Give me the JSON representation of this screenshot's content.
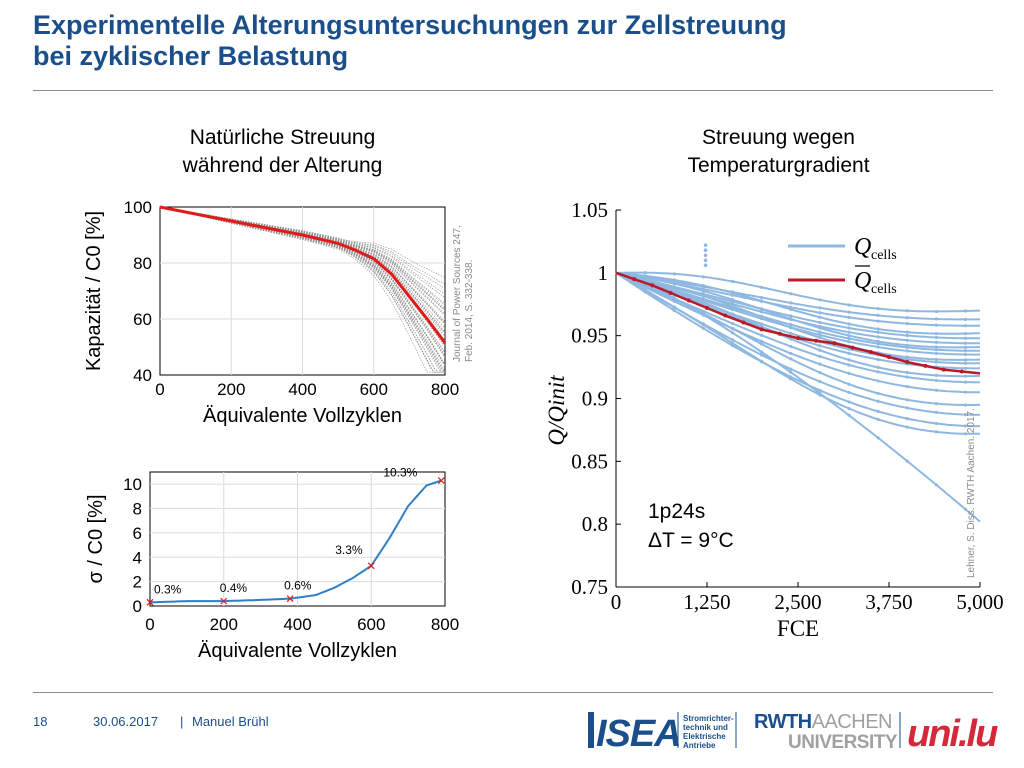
{
  "slide": {
    "title_line1": "Experimentelle Alterungsuntersuchungen zur Zellstreuung",
    "title_line2": "bei zyklischer Belastung",
    "left_heading_1": "Natürliche Streuung",
    "left_heading_2": "während der Alterung",
    "right_heading_1": "Streuung wegen",
    "right_heading_2": "Temperaturgradient",
    "citation_left_1": "Journal of Power Sources 247,",
    "citation_left_2": "Feb. 2014, S. 332-338.",
    "citation_right": "Lehner, S. Diss. RWTH Aachen. 2017."
  },
  "footer": {
    "page_number": "18",
    "date": "30.06.2017",
    "separator": "|",
    "author": "Manuel Brühl",
    "isea_logo_text": "ISEA",
    "isea_tagline_1": "Stromrichter-",
    "isea_tagline_2": "technik und",
    "isea_tagline_3": "Elektrische",
    "isea_tagline_4": "Antriebe",
    "rwth_line1_a": "RWTH",
    "rwth_line1_b": "AACHEN",
    "rwth_line2": "UNIVERSITY",
    "unilu_text": "uni.lu"
  },
  "colors": {
    "title": "#1a4f8b",
    "gray_curves": "#8c8c8c",
    "red": "#e21a1a",
    "dark_red": "#b81a28",
    "light_blue": "#8fb8e0",
    "blue": "#2f7fc4"
  },
  "chart_data": [
    {
      "type": "line",
      "xlabel": "Äquivalente Vollzyklen",
      "ylabel": "Kapazität / C0 [%]",
      "xlim": [
        0,
        800
      ],
      "ylim": [
        40,
        100
      ],
      "xticks": [
        0,
        200,
        400,
        600,
        800
      ],
      "yticks": [
        40,
        60,
        80,
        100
      ],
      "grid": true,
      "mean_series": {
        "x": [
          0,
          100,
          200,
          300,
          400,
          500,
          550,
          600,
          650,
          700,
          750,
          800
        ],
        "y": [
          100,
          97.5,
          95,
          92.5,
          90,
          87,
          84.5,
          81.5,
          76,
          68,
          60,
          51.5
        ]
      },
      "individual_cells_count": 48
    },
    {
      "type": "line",
      "xlabel": "Äquivalente Vollzyklen",
      "ylabel": "σ / C0 [%]",
      "xlim": [
        0,
        800
      ],
      "ylim": [
        0,
        11
      ],
      "xticks": [
        0,
        200,
        400,
        600,
        800
      ],
      "yticks": [
        0,
        2,
        4,
        6,
        8,
        10
      ],
      "grid": true,
      "series": {
        "x": [
          0,
          100,
          200,
          300,
          380,
          450,
          500,
          550,
          600,
          650,
          700,
          750,
          790
        ],
        "y": [
          0.3,
          0.4,
          0.4,
          0.5,
          0.6,
          0.9,
          1.5,
          2.3,
          3.3,
          5.6,
          8.2,
          9.9,
          10.3
        ]
      },
      "markers": [
        {
          "x": 0,
          "y": 0.3,
          "label": "0.3%"
        },
        {
          "x": 200,
          "y": 0.4,
          "label": "0.4%"
        },
        {
          "x": 380,
          "y": 0.6,
          "label": "0.6%"
        },
        {
          "x": 600,
          "y": 3.3,
          "label": "3.3%"
        },
        {
          "x": 790,
          "y": 10.3,
          "label": "10.3%"
        }
      ]
    },
    {
      "type": "line",
      "xlabel": "FCE",
      "ylabel": "Q/Qinit",
      "xlim": [
        0,
        5000
      ],
      "ylim": [
        0.75,
        1.05
      ],
      "xticks": [
        0,
        1250,
        2500,
        3750,
        5000
      ],
      "xtick_labels": [
        "0",
        "1,250",
        "2,500",
        "3,750",
        "5,000"
      ],
      "yticks": [
        0.75,
        0.8,
        0.85,
        0.9,
        0.95,
        1,
        1.05
      ],
      "ytick_labels": [
        "0.75",
        "0.8",
        "0.85",
        "0.9",
        "0.95",
        "1",
        "1.05"
      ],
      "legend": {
        "placement": "top-right",
        "entries": [
          "Q_cells",
          "Q̄_cells"
        ]
      },
      "legend_sub": "cells",
      "annotation_1": "1p24s",
      "annotation_2": "ΔT = 9°C",
      "mean_series": {
        "x": [
          0,
          500,
          1000,
          1500,
          2000,
          2500,
          3000,
          3500,
          4000,
          4500,
          5000
        ],
        "y": [
          1.0,
          0.99,
          0.978,
          0.966,
          0.955,
          0.948,
          0.944,
          0.937,
          0.929,
          0.923,
          0.92
        ]
      },
      "cell_end_values": [
        0.97,
        0.963,
        0.958,
        0.952,
        0.948,
        0.944,
        0.941,
        0.938,
        0.935,
        0.931,
        0.928,
        0.924,
        0.918,
        0.913,
        0.905,
        0.895,
        0.887,
        0.878,
        0.872,
        0.802
      ]
    }
  ]
}
